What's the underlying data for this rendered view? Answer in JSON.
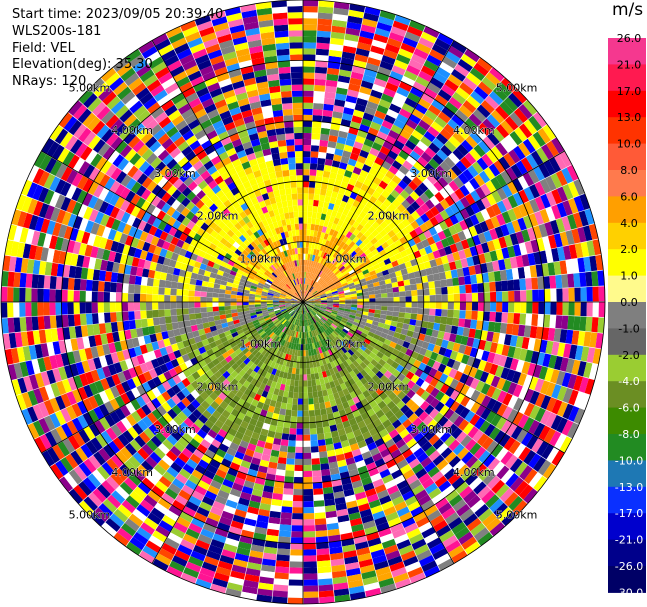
{
  "header": {
    "start_time": "Start time: 2023/09/05 20:39:40",
    "instrument": "WLS200s-181",
    "field": "Field: VEL",
    "elevation": "Elevation(deg): 35.30",
    "nrays": "NRays: 120"
  },
  "chart_data": {
    "type": "heatmap",
    "subtype": "ppi-polar",
    "unit": "m/s",
    "ring_labels": [
      "1.00km",
      "2.00km",
      "3.00km",
      "4.00km",
      "5.00km"
    ],
    "colorbar": {
      "ticks": [
        "26.0",
        "21.0",
        "17.0",
        "13.0",
        "10.0",
        "8.0",
        "6.0",
        "4.0",
        "2.0",
        "1.0",
        "0.0",
        "-1.0",
        "-2.0",
        "-4.0",
        "-6.0",
        "-8.0",
        "-10.0",
        "-13.0",
        "-17.0",
        "-21.0",
        "-26.0",
        "-30.0"
      ],
      "colors": [
        "#f5388f",
        "#ff1a50",
        "#ff0000",
        "#ff3300",
        "#ff5a37",
        "#ff7a4d",
        "#ff9f00",
        "#ffd000",
        "#ffff00",
        "#fffa8c",
        "#7f7f7f",
        "#666666",
        "#9acd32",
        "#6b8e23",
        "#3d8b00",
        "#228b22",
        "#1e78b4",
        "#0a30ff",
        "#0000cd",
        "#00008b",
        "#000066"
      ]
    },
    "near_field": {
      "approaching_color": "#7f9a2a",
      "receding_color": "#ffd000",
      "ring_max_km": 2.4
    },
    "noise_palette": [
      "#ff1493",
      "#ff69b4",
      "#0000ff",
      "#ffff00",
      "#ff0000",
      "#8b008b",
      "#9acd32",
      "#ffa500",
      "#00008b",
      "#228b22",
      "#ffffff",
      "#808080",
      "#1e90ff",
      "#000080",
      "#ff4500"
    ]
  }
}
